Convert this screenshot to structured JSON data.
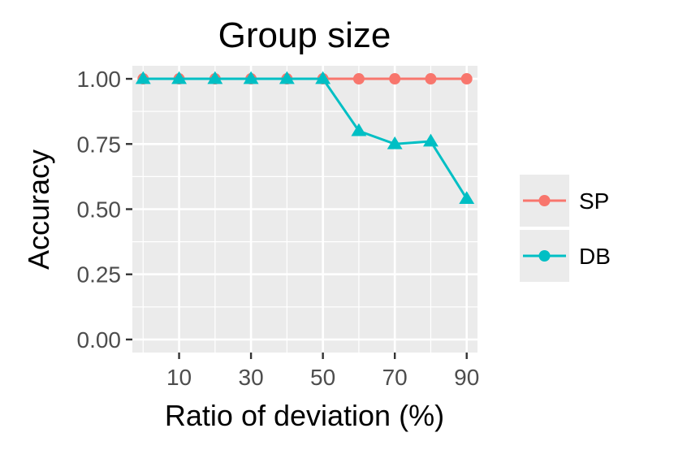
{
  "chart_data": {
    "type": "line",
    "title": "Group size",
    "xlabel": "Ratio of deviation (%)",
    "ylabel": "Accuracy",
    "x": [
      0,
      10,
      20,
      30,
      40,
      50,
      60,
      70,
      80,
      90
    ],
    "xlim": [
      -3,
      93
    ],
    "ylim": [
      -0.05,
      1.05
    ],
    "x_ticks": [
      10,
      30,
      50,
      70,
      90
    ],
    "x_tick_labels": [
      "10",
      "30",
      "50",
      "70",
      "90"
    ],
    "y_ticks": [
      0,
      0.25,
      0.5,
      0.75,
      1.0
    ],
    "y_tick_labels": [
      "0.00",
      "0.25",
      "0.50",
      "0.75",
      "1.00"
    ],
    "x_minor_grid": [
      0,
      20,
      40,
      60,
      80
    ],
    "y_minor_grid": [
      0.125,
      0.375,
      0.625,
      0.875
    ],
    "grid": true,
    "legend_position": "right",
    "series": [
      {
        "name": "SP",
        "color": "#F8766D",
        "marker": "circle",
        "values": [
          1.0,
          1.0,
          1.0,
          1.0,
          1.0,
          1.0,
          1.0,
          1.0,
          1.0,
          1.0
        ]
      },
      {
        "name": "DB",
        "color": "#00BFC4",
        "marker": "triangle",
        "values": [
          1.0,
          1.0,
          1.0,
          1.0,
          1.0,
          1.0,
          0.8,
          0.75,
          0.76,
          0.54
        ]
      }
    ],
    "panel_background": "#EBEBEB",
    "grid_color": "#FFFFFF",
    "tick_label_color": "#4D4D4D",
    "tick_mark_color": "#333333"
  }
}
